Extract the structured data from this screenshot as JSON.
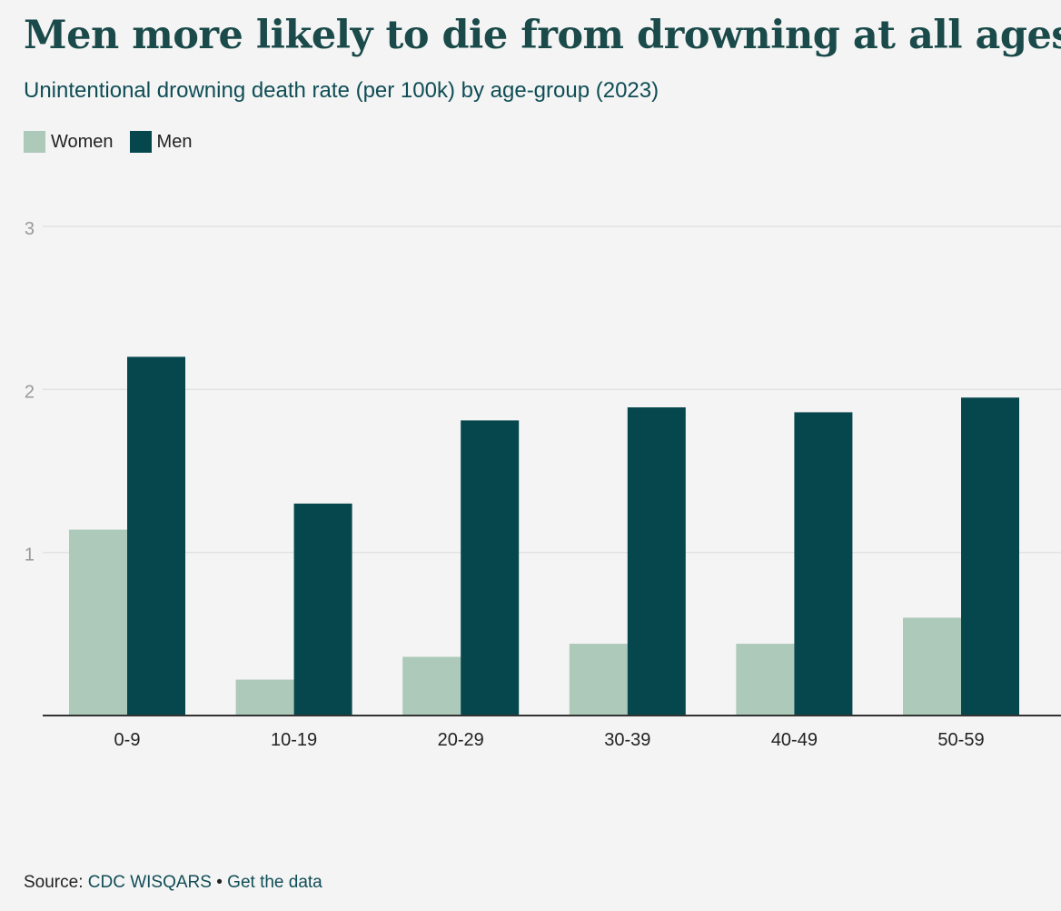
{
  "title": "Men more likely to die from drowning at all ages",
  "subtitle": "Unintentional drowning death rate (per 100k) by age-group (2023)",
  "source": {
    "prefix": "Source: ",
    "name": "CDC WISQARS",
    "separator": " • ",
    "data_link": "Get the data"
  },
  "colors": {
    "women": "#acc9b9",
    "men": "#05474d",
    "grid": "#e2e2e2",
    "axis": "#333333",
    "tick_text": "#999999",
    "category_text": "#222222"
  },
  "chart_data": {
    "type": "bar",
    "title": "Men more likely to die from drowning at all ages",
    "subtitle": "Unintentional drowning death rate (per 100k) by age-group (2023)",
    "xlabel": "",
    "ylabel": "",
    "ylim": [
      0,
      3
    ],
    "yticks": [
      "1",
      "2",
      "3"
    ],
    "grid": true,
    "legend": "top-left",
    "categories": [
      "0-9",
      "10-19",
      "20-29",
      "30-39",
      "40-49",
      "50-59"
    ],
    "series": [
      {
        "name": "Women",
        "values": [
          1.14,
          0.22,
          0.36,
          0.44,
          0.44,
          0.6
        ]
      },
      {
        "name": "Men",
        "values": [
          2.2,
          1.3,
          1.81,
          1.89,
          1.86,
          1.95
        ]
      }
    ]
  }
}
